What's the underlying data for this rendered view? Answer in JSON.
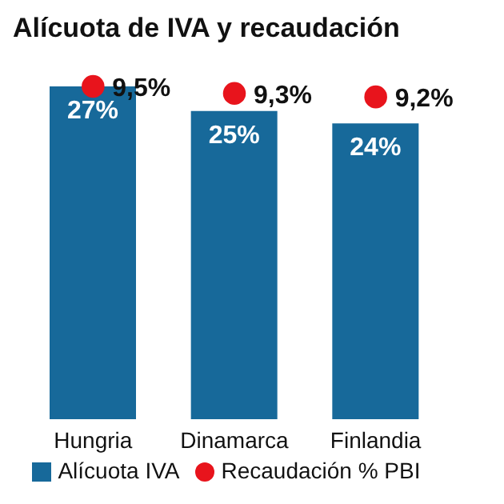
{
  "chart_data": {
    "type": "bar",
    "title": "Alícuota de IVA y recaudación",
    "categories": [
      "Hungria",
      "Dinamarca",
      "Finlandia"
    ],
    "legend": "bottom",
    "marker": "circle",
    "series": [
      {
        "name": "Alícuota IVA",
        "type": "bar",
        "color": "#17699a",
        "values": [
          27,
          25,
          24
        ],
        "value_labels": [
          "27%",
          "25%",
          "24%"
        ]
      },
      {
        "name": "Recaudación % PBI",
        "type": "scatter",
        "axis": "y2",
        "color": "#e8141c",
        "values": [
          9.5,
          9.3,
          9.2
        ],
        "value_labels": [
          "9,5%",
          "9,3%",
          "9,2%"
        ]
      }
    ]
  }
}
